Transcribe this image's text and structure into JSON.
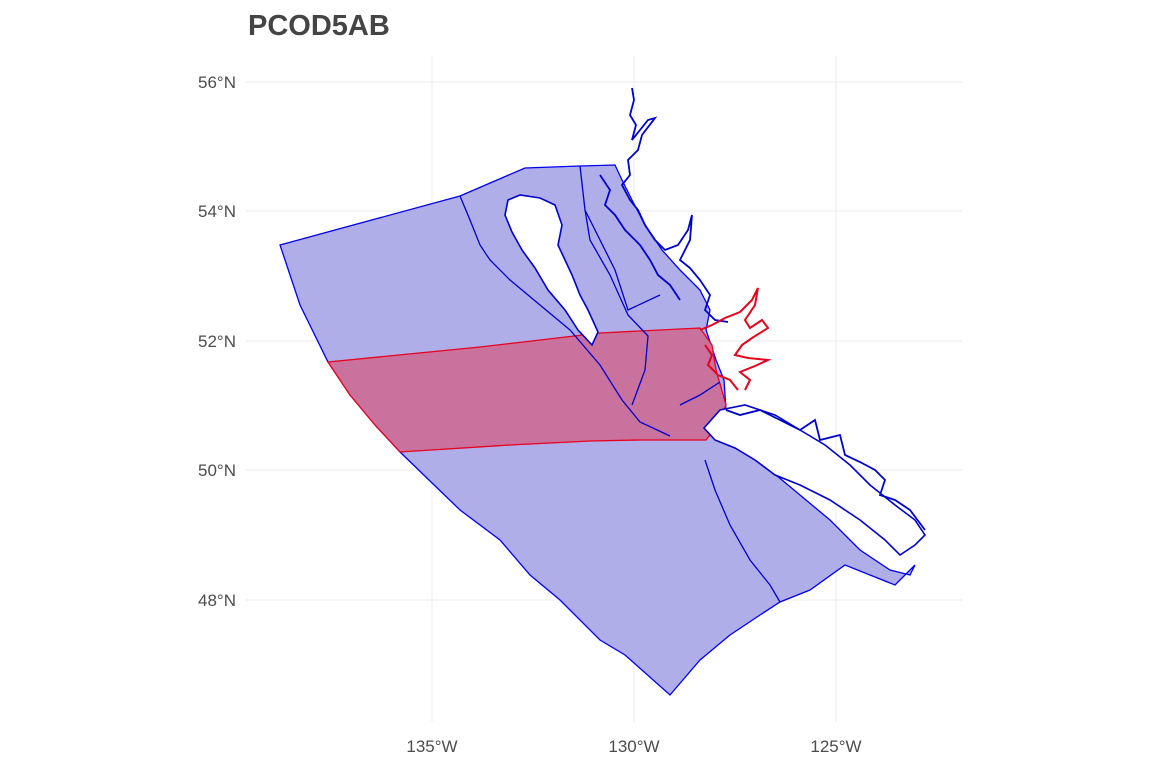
{
  "title": "PCOD5AB",
  "axes": {
    "x_ticks": [
      {
        "value": -135,
        "label": "135°W"
      },
      {
        "value": -130,
        "label": "130°W"
      },
      {
        "value": -125,
        "label": "125°W"
      }
    ],
    "y_ticks": [
      {
        "value": 56,
        "label": "56°N"
      },
      {
        "value": 54,
        "label": "54°N"
      },
      {
        "value": 52,
        "label": "52°N"
      },
      {
        "value": 50,
        "label": "50°N"
      },
      {
        "value": 48,
        "label": "48°N"
      }
    ],
    "grid": true
  },
  "colors": {
    "region_fill": "#b0aee8",
    "region_stroke": "#0000ee",
    "highlight_fill": "#c8729d",
    "highlight_stroke": "#e8001c",
    "coast_stroke": "#0000cc",
    "land_fill": "#ffffff"
  }
}
